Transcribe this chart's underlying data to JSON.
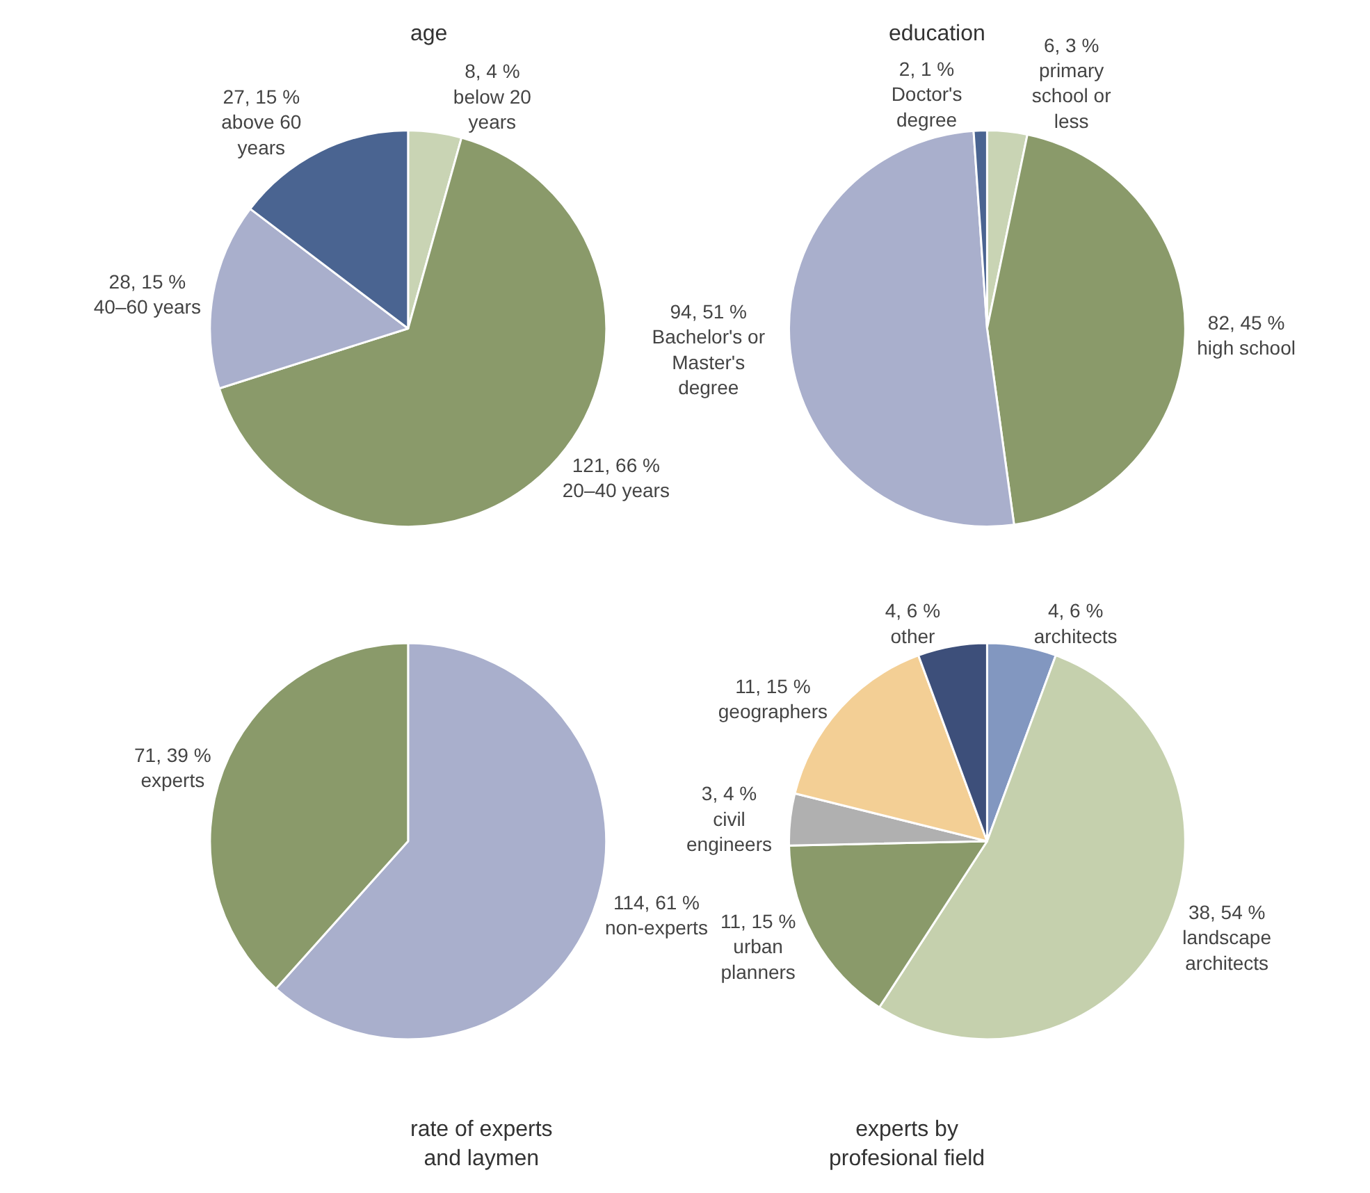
{
  "chart_data": [
    {
      "type": "pie",
      "title": "age",
      "categories": [
        "below 20 years",
        "20–40 years",
        "40–60 years",
        "above 60 years"
      ],
      "values": [
        8,
        121,
        28,
        27
      ],
      "colors": [
        "#c9d4b4",
        "#8a9a6a",
        "#a9afcc",
        "#4a6491"
      ],
      "value_labels": [
        "8, 4 %",
        "121, 66 %",
        "28, 15 %",
        "27, 15 %"
      ]
    },
    {
      "type": "pie",
      "title": "education",
      "categories": [
        "primary school or less",
        "high school",
        "Bachelor's or Master's degree",
        "Doctor's degree"
      ],
      "values": [
        6,
        82,
        94,
        2
      ],
      "colors": [
        "#c9d4b4",
        "#8a9a6a",
        "#a9afcc",
        "#4a6491"
      ],
      "value_labels": [
        "6, 3 %",
        "82, 45 %",
        "94, 51 %",
        "2, 1 %"
      ]
    },
    {
      "type": "pie",
      "title": "rate of experts and laymen",
      "categories": [
        "non-experts",
        "experts"
      ],
      "values": [
        114,
        71
      ],
      "colors": [
        "#a9afcc",
        "#8a9a6a"
      ],
      "value_labels": [
        "114, 61 %",
        "71, 39 %"
      ]
    },
    {
      "type": "pie",
      "title": "experts by profesional field",
      "categories": [
        "architects",
        "landscape architects",
        "urban planners",
        "civil engineers",
        "geographers",
        "other"
      ],
      "values": [
        4,
        38,
        11,
        3,
        11,
        4
      ],
      "colors": [
        "#8297c0",
        "#c5d0ad",
        "#8a9a6a",
        "#b0b0b0",
        "#f3cf95",
        "#3d4f7a"
      ],
      "value_labels": [
        "4, 6 %",
        "38, 54 %",
        "11, 15 %",
        "3, 4 %",
        "11, 15 %",
        "4, 6 %"
      ]
    }
  ]
}
